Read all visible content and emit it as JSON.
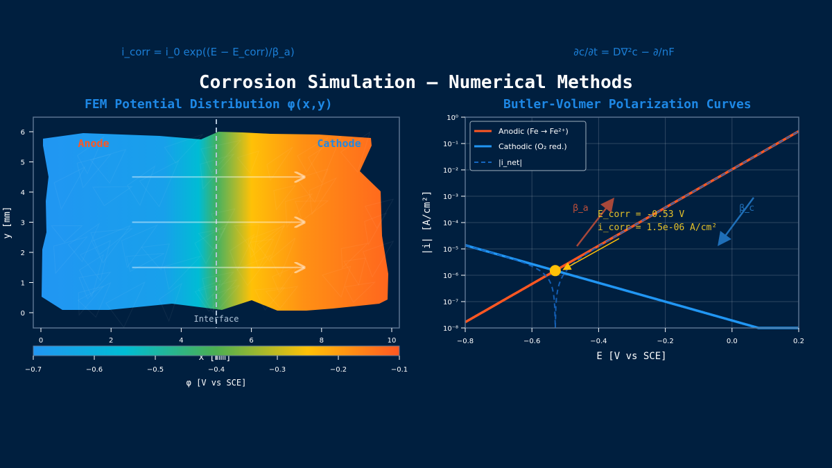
{
  "title": "Corrosion Simulation — Numerical Methods",
  "colors": {
    "background": "#001f3f",
    "accent": "#1e88e5",
    "anodic": "#ff5722",
    "cathodic": "#2196f3",
    "net": "#1565c0",
    "ecorr": "#ffc107",
    "text": "#ffffff"
  },
  "overlay_equations": {
    "bv": "i_corr = i_0 exp((E − E_corr)/β_a)",
    "diffusion": "∂c/∂t = D∇²c − ∂/nF"
  },
  "chart_data": [
    {
      "type": "heatmap",
      "title": "FEM Potential Distribution  φ(x,y)",
      "xlabel": "x  [mm]",
      "ylabel": "y  [mm]",
      "xlim": [
        -0.2,
        10.2
      ],
      "ylim": [
        -0.5,
        6.5
      ],
      "xticks": [
        "0",
        "2",
        "4",
        "6",
        "8",
        "10"
      ],
      "yticks": [
        "0",
        "1",
        "2",
        "3",
        "4",
        "5",
        "6"
      ],
      "colorbar": {
        "label": "φ  [V vs SCE]",
        "range": [
          -0.7,
          -0.1
        ],
        "ticks": [
          "−0.7",
          "−0.6",
          "−0.5",
          "−0.4",
          "−0.3",
          "−0.2",
          "−0.1"
        ],
        "colormap": [
          "#2196f3",
          "#00bcd4",
          "#4caf50",
          "#ffc107",
          "#ff5722"
        ]
      },
      "annotations": {
        "anode": "Anode",
        "cathode": "Cathode",
        "interface": "Interface",
        "interface_x": 5,
        "current_arrows_y": [
          4.5,
          3,
          1.5
        ],
        "current_arrows_x": [
          2.6,
          7.5
        ]
      },
      "field": {
        "x": [
          0,
          3.5,
          4.5,
          5,
          6,
          7.5,
          10
        ],
        "phi": [
          -0.7,
          -0.66,
          -0.55,
          -0.42,
          -0.25,
          -0.18,
          -0.12
        ]
      }
    },
    {
      "type": "line",
      "title": "Butler-Volmer Polarization Curves",
      "xlabel": "E  [V vs SCE]",
      "ylabel": "|i|  [A/cm²]",
      "xlim": [
        -0.8,
        0.2
      ],
      "ylim": [
        1e-08,
        1
      ],
      "yscale": "log",
      "grid": true,
      "legend_position": "top-left",
      "xticks": [
        "−0.8",
        "−0.6",
        "−0.4",
        "−0.2",
        "0.0",
        "0.2"
      ],
      "yticks": [
        "10⁻⁸",
        "10⁻⁷",
        "10⁻⁶",
        "10⁻⁵",
        "10⁻⁴",
        "10⁻³",
        "10⁻²",
        "10⁻¹",
        "10⁰"
      ],
      "series": [
        {
          "name": "Anodic (Fe → Fe²⁺)",
          "style": "solid",
          "color": "#ff5722",
          "E_corr": -0.53,
          "i_corr": 1.5e-06,
          "tafel_slope_V_per_decade": 0.138
        },
        {
          "name": "Cathodic (O₂ red.)",
          "style": "solid",
          "color": "#2196f3",
          "E_corr": -0.53,
          "i_corr": 1.5e-06,
          "tafel_slope_V_per_decade": -0.28
        },
        {
          "name": "|i_net|",
          "style": "dashed",
          "color": "#1565c0"
        }
      ],
      "annotations": {
        "ecorr_text": "E_corr = -0.53 V",
        "icorr_text": "i_corr = 1.5e-06 A/cm²",
        "beta_a": "β_a",
        "beta_c": "β_c",
        "ecorr_point": {
          "E": -0.53,
          "i": 1.5e-06
        }
      }
    }
  ]
}
